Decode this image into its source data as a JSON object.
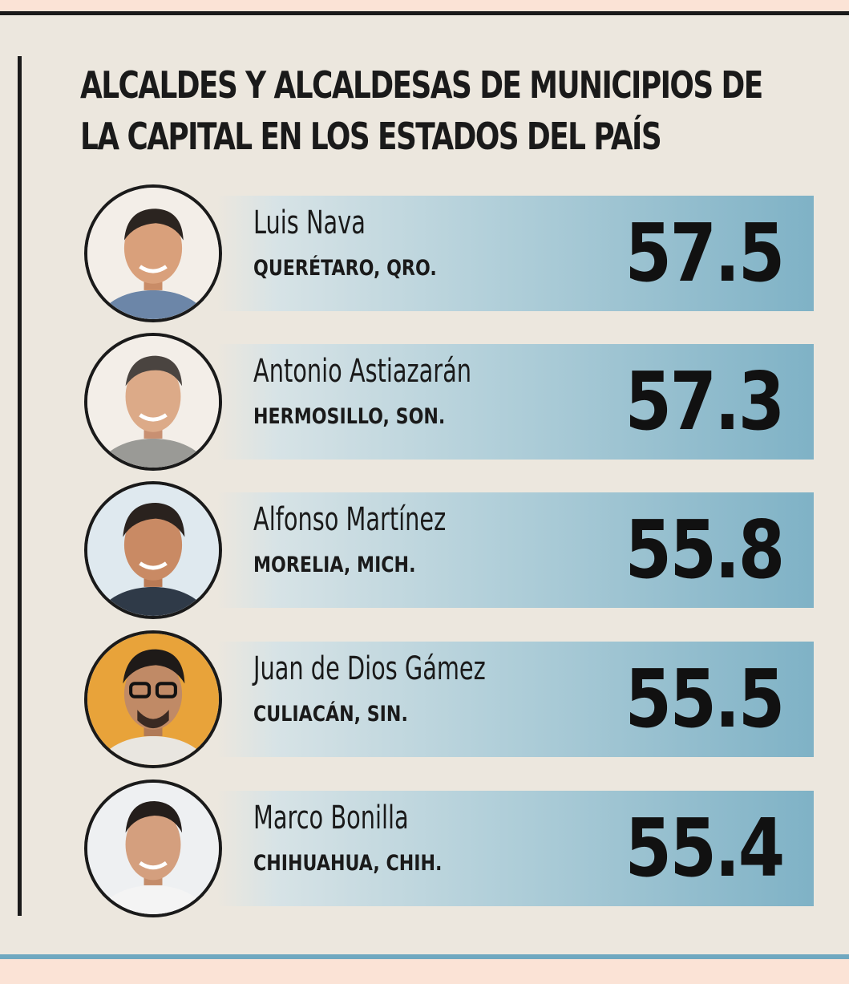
{
  "title_lines": [
    "ALCALDES Y ALCALDESAS DE MUNICIPIOS DE",
    "LA CAPITAL EN LOS ESTADOS DEL PAÍS"
  ],
  "mayors": [
    {
      "name": "Luis Nava",
      "city": "QUERÉTARO, QRO.",
      "score": "57.5",
      "photo_bg": "#f3eee8"
    },
    {
      "name": "Antonio Astiazarán",
      "city": "HERMOSILLO, SON.",
      "score": "57.3",
      "photo_bg": "#f3eee8"
    },
    {
      "name": "Alfonso Martínez",
      "city": "MORELIA, MICH.",
      "score": "55.8",
      "photo_bg": "#dfe9ef"
    },
    {
      "name": "Juan de Dios Gámez",
      "city": "CULIACÁN, SIN.",
      "score": "55.5",
      "photo_bg": "#e8a33a"
    },
    {
      "name": "Marco Bonilla",
      "city": "CHIHUAHUA, CHIH.",
      "score": "55.4",
      "photo_bg": "#eef0f2"
    }
  ],
  "colors": {
    "background": "#ece7de",
    "accent_bar": "#7fb2c6",
    "text": "#1a1a1a"
  },
  "icon": "person-photo-icon"
}
